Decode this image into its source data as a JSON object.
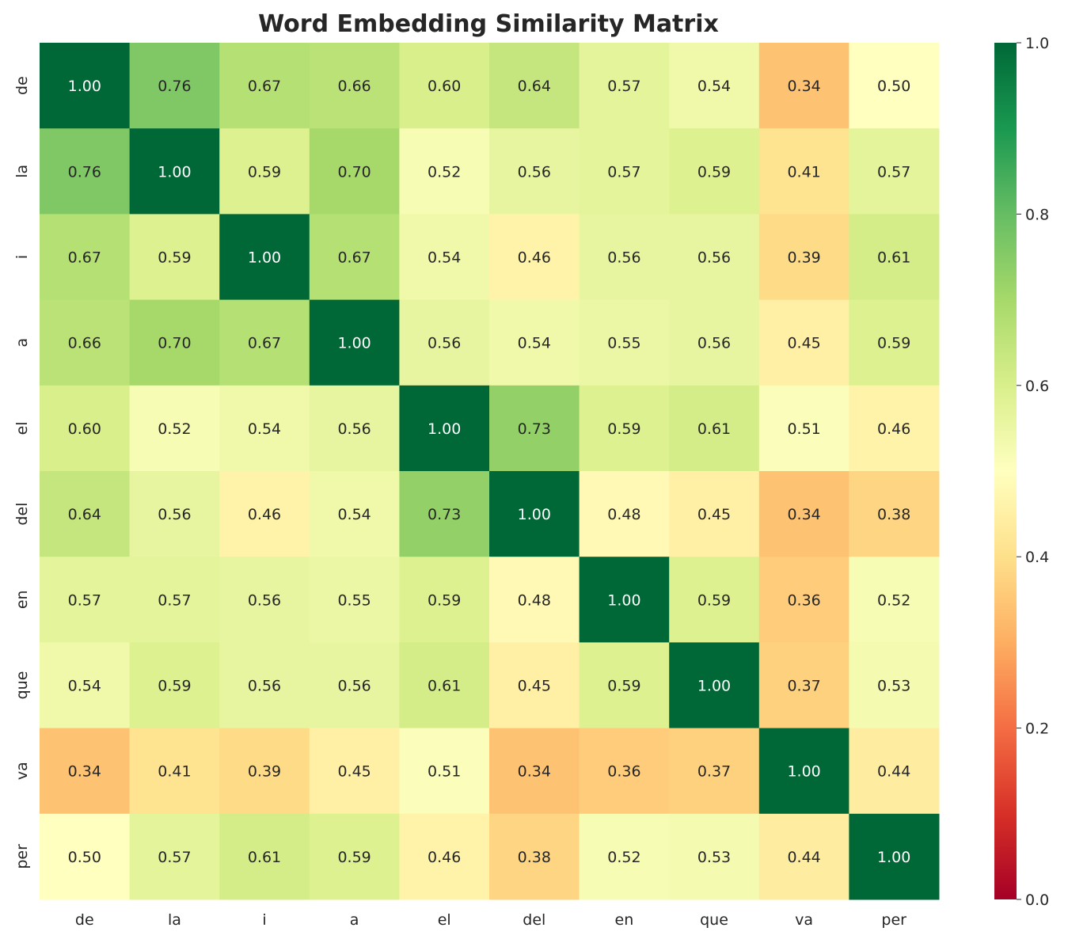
{
  "chart_data": {
    "type": "heatmap",
    "title": "Word Embedding Similarity Matrix",
    "colormap": "RdYlGn",
    "vmin": 0.0,
    "vmax": 1.0,
    "colorbar_ticks": [
      "0.0",
      "0.2",
      "0.4",
      "0.6",
      "0.8",
      "1.0"
    ],
    "x_labels": [
      "de",
      "la",
      "i",
      "a",
      "el",
      "del",
      "en",
      "que",
      "va",
      "per"
    ],
    "y_labels": [
      "de",
      "la",
      "i",
      "a",
      "el",
      "del",
      "en",
      "que",
      "va",
      "per"
    ],
    "values": [
      [
        1.0,
        0.76,
        0.67,
        0.66,
        0.6,
        0.64,
        0.57,
        0.54,
        0.34,
        0.5
      ],
      [
        0.76,
        1.0,
        0.59,
        0.7,
        0.52,
        0.56,
        0.57,
        0.59,
        0.41,
        0.57
      ],
      [
        0.67,
        0.59,
        1.0,
        0.67,
        0.54,
        0.46,
        0.56,
        0.56,
        0.39,
        0.61
      ],
      [
        0.66,
        0.7,
        0.67,
        1.0,
        0.56,
        0.54,
        0.55,
        0.56,
        0.45,
        0.59
      ],
      [
        0.6,
        0.52,
        0.54,
        0.56,
        1.0,
        0.73,
        0.59,
        0.61,
        0.51,
        0.46
      ],
      [
        0.64,
        0.56,
        0.46,
        0.54,
        0.73,
        1.0,
        0.48,
        0.45,
        0.34,
        0.38
      ],
      [
        0.57,
        0.57,
        0.56,
        0.55,
        0.59,
        0.48,
        1.0,
        0.59,
        0.36,
        0.52
      ],
      [
        0.54,
        0.59,
        0.56,
        0.56,
        0.61,
        0.45,
        0.59,
        1.0,
        0.37,
        0.53
      ],
      [
        0.34,
        0.41,
        0.39,
        0.45,
        0.51,
        0.34,
        0.36,
        0.37,
        1.0,
        0.44
      ],
      [
        0.5,
        0.57,
        0.61,
        0.59,
        0.46,
        0.38,
        0.52,
        0.53,
        0.44,
        1.0
      ]
    ]
  }
}
